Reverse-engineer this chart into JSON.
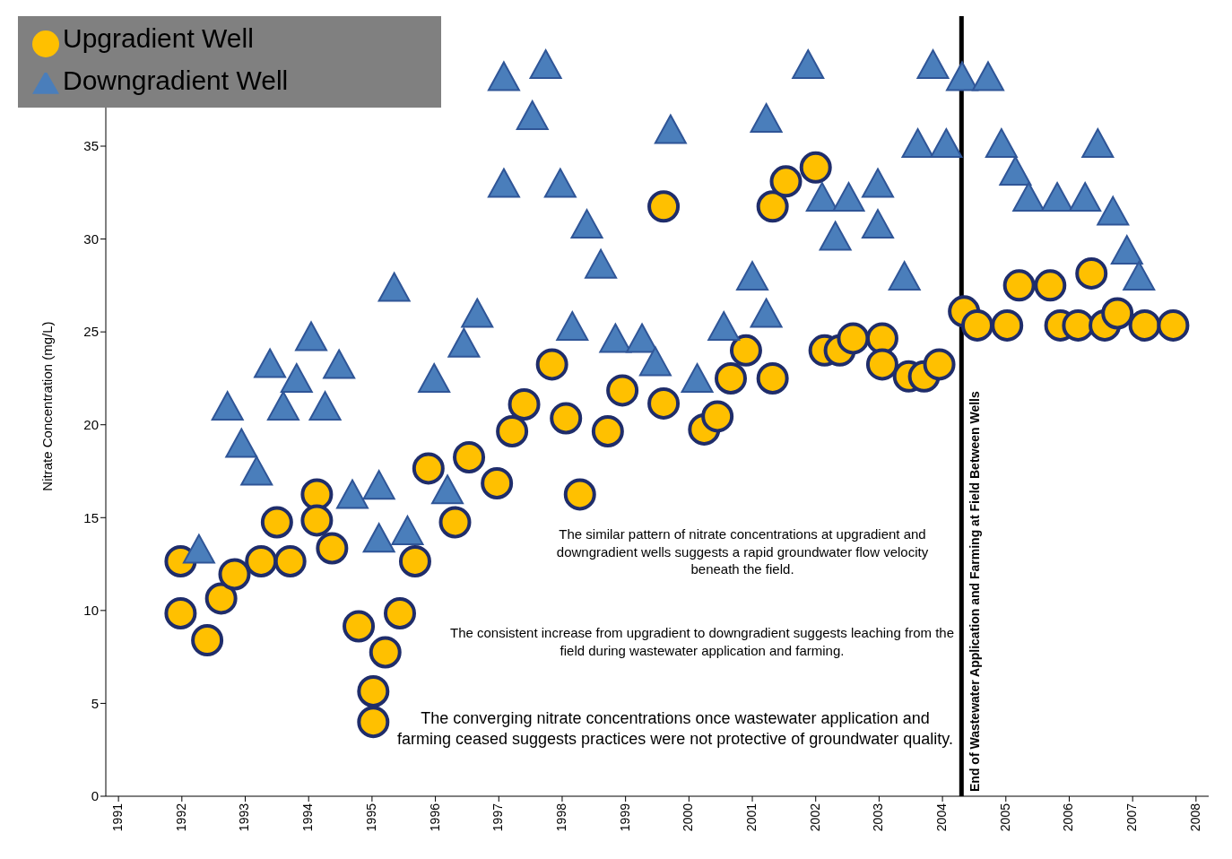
{
  "chart_data": {
    "type": "scatter",
    "ylabel": "Nitrate Concentration (mg/L)",
    "xlim": [
      1990.8,
      2008.2
    ],
    "xticks": [
      1991,
      1992,
      1993,
      1994,
      1995,
      1996,
      1997,
      1998,
      1999,
      2000,
      2001,
      2002,
      2003,
      2004,
      2005,
      2006,
      2007,
      2008
    ],
    "ylim": [
      0,
      42
    ],
    "yticks": [
      0,
      5,
      10,
      15,
      20,
      25,
      30,
      35
    ],
    "grid": false,
    "legend": "top left",
    "series": [
      {
        "name": "Upgradient Well",
        "color": "#ffc000",
        "marker": "circle",
        "x": [
          1991.98,
          1991.98,
          1992.4,
          1992.62,
          1992.83,
          1993.25,
          1993.5,
          1993.71,
          1994.13,
          1994.13,
          1994.37,
          1994.79,
          1995.02,
          1995.02,
          1995.21,
          1995.44,
          1995.68,
          1995.89,
          1996.31,
          1996.53,
          1996.97,
          1997.21,
          1997.4,
          1997.84,
          1998.06,
          1998.28,
          1998.72,
          1998.95,
          1999.6,
          1999.6,
          2000.24,
          2000.45,
          2000.66,
          2000.9,
          2001.32,
          2001.32,
          2001.53,
          2002.0,
          2002.14,
          2002.38,
          2002.59,
          2003.05,
          2003.05,
          2003.47,
          2003.71,
          2003.95,
          2004.34,
          2004.55,
          2005.02,
          2005.21,
          2005.7,
          2005.86,
          2006.14,
          2006.35,
          2006.56,
          2006.76,
          2007.19,
          2007.64
        ],
        "values": [
          12.65,
          9.85,
          8.4,
          10.65,
          11.95,
          12.65,
          14.75,
          12.65,
          16.25,
          14.85,
          13.35,
          9.15,
          5.65,
          4,
          7.75,
          9.85,
          12.65,
          17.65,
          14.75,
          18.25,
          16.85,
          19.65,
          21.1,
          23.25,
          20.35,
          16.25,
          19.65,
          21.85,
          21.15,
          31.75,
          19.75,
          20.45,
          22.5,
          24,
          22.5,
          31.75,
          33.1,
          33.85,
          24,
          24,
          24.65,
          24.65,
          23.25,
          22.6,
          22.6,
          23.25,
          26.1,
          25.35,
          25.35,
          27.5,
          27.5,
          25.35,
          25.35,
          28.15,
          25.35,
          26,
          25.35,
          25.35
        ]
      },
      {
        "name": "Downgradient Well",
        "color": "#4a7ebb",
        "marker": "triangle",
        "x": [
          1992.27,
          1992.72,
          1992.94,
          1993.18,
          1993.39,
          1993.6,
          1993.81,
          1994.04,
          1994.26,
          1994.48,
          1994.69,
          1995.11,
          1995.11,
          1995.35,
          1995.56,
          1995.98,
          1996.19,
          1996.45,
          1996.66,
          1997.08,
          1997.08,
          1997.53,
          1997.74,
          1997.97,
          1998.16,
          1998.39,
          1998.61,
          1998.84,
          1999.26,
          1999.47,
          1999.71,
          2000.13,
          2000.55,
          2001.0,
          2001.22,
          2001.22,
          2001.88,
          2002.1,
          2002.31,
          2002.52,
          2002.98,
          2002.98,
          2003.4,
          2003.61,
          2003.85,
          2004.06,
          2004.31,
          2004.72,
          2004.93,
          2005.15,
          2005.36,
          2005.81,
          2006.25,
          2006.45,
          2006.69,
          2006.91,
          2007.1
        ],
        "values": [
          13.15,
          20.85,
          18.85,
          17.35,
          23.15,
          20.85,
          22.35,
          24.6,
          20.85,
          23.1,
          16.1,
          16.6,
          13.75,
          27.25,
          14.15,
          22.35,
          16.35,
          24.25,
          25.85,
          38.6,
          32.85,
          36.5,
          39.25,
          32.85,
          25.15,
          30.65,
          28.5,
          24.5,
          24.5,
          23.25,
          35.75,
          22.35,
          25.15,
          27.85,
          36.35,
          25.85,
          39.25,
          32.1,
          30,
          32.1,
          32.85,
          30.65,
          27.85,
          35,
          39.25,
          35,
          38.6,
          38.6,
          35,
          33.5,
          32.1,
          32.1,
          32.1,
          35,
          31.35,
          29.25,
          27.85
        ]
      }
    ],
    "ref_lines": [
      {
        "axis": "x",
        "value": 2004.3,
        "label": "End of Wastewater Application and Farming at Field Between Wells",
        "color": "#000000"
      }
    ],
    "annotations": [
      "The similar pattern of nitrate concentrations at upgradient and downgradient wells suggests a rapid groundwater flow velocity beneath the field.",
      "The consistent increase from upgradient to downgradient suggests leaching from the field during wastewater application and farming.",
      "The converging nitrate concentrations once wastewater application and farming ceased suggests practices were not protective of groundwater quality."
    ]
  }
}
